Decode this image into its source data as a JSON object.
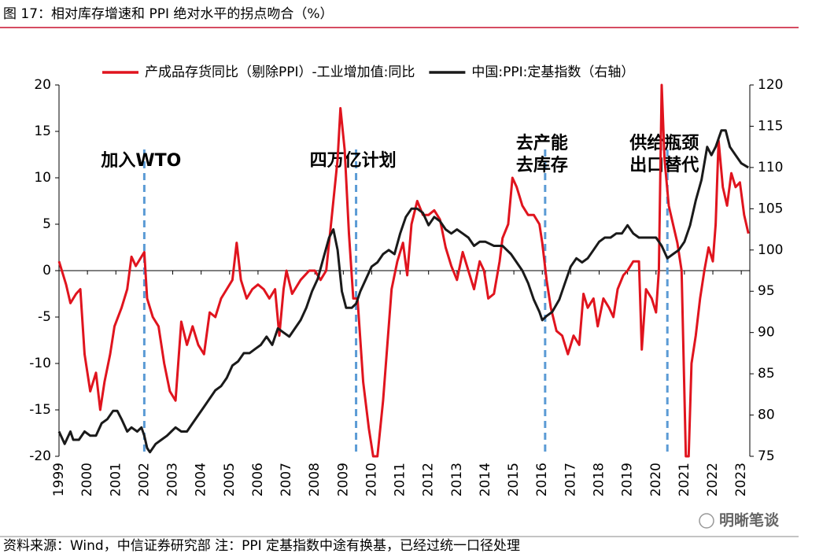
{
  "chart_data": {
    "type": "line",
    "title": "图 17：相对库存增速和 PPI 绝对水平的拐点吻合（%）",
    "source": "资料来源：Wind，中信证券研究部  注：PPI 定基指数中途有换基，已经过统一口径处理",
    "watermark": "明晰笔谈",
    "xlim": [
      1999,
      2023.3
    ],
    "xticks": [
      1999,
      2000,
      2001,
      2002,
      2003,
      2004,
      2005,
      2006,
      2007,
      2008,
      2009,
      2010,
      2011,
      2012,
      2013,
      2014,
      2015,
      2016,
      2017,
      2018,
      2019,
      2020,
      2021,
      2022,
      2023
    ],
    "ylim": [
      -20,
      20
    ],
    "yticks": [
      -20,
      -15,
      -10,
      -5,
      0,
      5,
      10,
      15,
      20
    ],
    "y2lim": [
      75,
      120
    ],
    "y2ticks": [
      75,
      80,
      85,
      90,
      95,
      100,
      105,
      110,
      115,
      120
    ],
    "legend": "top",
    "annotations": [
      {
        "x": 2002.0,
        "lines": [
          "加入WTO"
        ]
      },
      {
        "x": 2009.45,
        "lines": [
          "四万亿计划"
        ]
      },
      {
        "x": 2016.1,
        "lines": [
          "去产能",
          "去库存"
        ]
      },
      {
        "x": 2020.4,
        "lines": [
          "供给瓶颈",
          "出口替代"
        ]
      }
    ],
    "series": [
      {
        "name": "产成品存货同比（剔除PPI）-工业增加值:同比",
        "color": "#e0141e",
        "axis": "y",
        "x": [
          1999.0,
          1999.25,
          1999.4,
          1999.6,
          1999.75,
          1999.9,
          2000.1,
          2000.3,
          2000.45,
          2000.6,
          2000.8,
          2000.95,
          2001.2,
          2001.4,
          2001.55,
          2001.7,
          2001.9,
          2002.0,
          2002.1,
          2002.3,
          2002.5,
          2002.7,
          2002.9,
          2003.1,
          2003.3,
          2003.5,
          2003.7,
          2003.9,
          2004.1,
          2004.3,
          2004.5,
          2004.7,
          2004.9,
          2005.1,
          2005.25,
          2005.4,
          2005.6,
          2005.8,
          2006.0,
          2006.2,
          2006.4,
          2006.6,
          2006.75,
          2006.9,
          2007.0,
          2007.2,
          2007.5,
          2007.8,
          2008.0,
          2008.2,
          2008.4,
          2008.6,
          2008.8,
          2008.9,
          2009.05,
          2009.2,
          2009.35,
          2009.5,
          2009.7,
          2009.9,
          2010.05,
          2010.2,
          2010.4,
          2010.55,
          2010.7,
          2010.9,
          2011.1,
          2011.25,
          2011.4,
          2011.6,
          2011.8,
          2012.0,
          2012.2,
          2012.4,
          2012.6,
          2012.8,
          2013.0,
          2013.2,
          2013.4,
          2013.6,
          2013.8,
          2013.95,
          2014.1,
          2014.3,
          2014.5,
          2014.6,
          2014.8,
          2014.95,
          2015.1,
          2015.3,
          2015.5,
          2015.7,
          2015.9,
          2016.0,
          2016.15,
          2016.3,
          2016.5,
          2016.7,
          2016.9,
          2017.1,
          2017.3,
          2017.45,
          2017.6,
          2017.8,
          2017.95,
          2018.15,
          2018.35,
          2018.5,
          2018.65,
          2018.85,
          2019.0,
          2019.2,
          2019.4,
          2019.5,
          2019.65,
          2019.85,
          2020.0,
          2020.1,
          2020.2,
          2020.3,
          2020.45,
          2020.6,
          2020.75,
          2020.9,
          2021.05,
          2021.15,
          2021.25,
          2021.4,
          2021.55,
          2021.7,
          2021.85,
          2022.0,
          2022.1,
          2022.2,
          2022.35,
          2022.5,
          2022.65,
          2022.8,
          2022.95,
          2023.1,
          2023.25
        ],
        "values": [
          1,
          -1.5,
          -3.5,
          -2.5,
          -2,
          -9,
          -13,
          -11,
          -15,
          -12,
          -9,
          -6,
          -4,
          -2,
          1.5,
          0.5,
          1.5,
          2,
          -3,
          -5,
          -6,
          -10,
          -13,
          -14,
          -5.5,
          -8,
          -6,
          -8,
          -9,
          -4.5,
          -5,
          -3,
          -2,
          -1,
          3,
          -1,
          -3,
          -2,
          -1.5,
          -2,
          -3,
          -2,
          -7,
          -2,
          0,
          -2.5,
          -1,
          0,
          0,
          -1,
          0,
          6,
          12,
          17.5,
          13,
          4,
          -3,
          -3,
          -12,
          -17,
          -20,
          -20,
          -14,
          -8,
          -2,
          1,
          3,
          -0.5,
          5,
          7.5,
          6,
          6,
          6.5,
          5.5,
          2.5,
          0.5,
          -1,
          2,
          0,
          -2,
          1,
          0,
          -3,
          -2.5,
          1,
          3.5,
          5,
          10,
          9,
          7,
          6,
          6,
          5,
          3,
          -1,
          -4,
          -6.5,
          -7,
          -9,
          -7,
          -8,
          -2.5,
          -4,
          -3,
          -6,
          -3,
          -4,
          -5,
          -2,
          -0.5,
          0,
          1,
          1,
          -8.5,
          -2,
          -3,
          -4.5,
          0,
          20,
          12,
          7,
          5,
          3,
          0,
          -20,
          -20,
          -10,
          -7,
          -3,
          0,
          2.5,
          1,
          5,
          14,
          9,
          7,
          10.5,
          9,
          9.5,
          6,
          4
        ]
      },
      {
        "name": "中国:PPI:定基指数（右轴）",
        "color": "#1a1a1a",
        "axis": "y2",
        "x": [
          1999.0,
          1999.2,
          1999.4,
          1999.5,
          1999.7,
          1999.9,
          2000.1,
          2000.3,
          2000.5,
          2000.7,
          2000.9,
          2001.05,
          2001.2,
          2001.4,
          2001.55,
          2001.75,
          2001.9,
          2002.0,
          2002.1,
          2002.2,
          2002.4,
          2002.6,
          2002.8,
          2002.95,
          2003.1,
          2003.3,
          2003.5,
          2003.7,
          2003.9,
          2004.1,
          2004.3,
          2004.5,
          2004.7,
          2004.9,
          2005.1,
          2005.3,
          2005.5,
          2005.7,
          2005.9,
          2006.1,
          2006.3,
          2006.5,
          2006.7,
          2006.9,
          2007.1,
          2007.3,
          2007.5,
          2007.7,
          2007.9,
          2008.1,
          2008.3,
          2008.5,
          2008.65,
          2008.8,
          2008.95,
          2009.1,
          2009.3,
          2009.45,
          2009.6,
          2009.8,
          2010.0,
          2010.2,
          2010.4,
          2010.6,
          2010.8,
          2011.0,
          2011.2,
          2011.4,
          2011.6,
          2011.8,
          2012.0,
          2012.2,
          2012.4,
          2012.6,
          2012.8,
          2013.0,
          2013.2,
          2013.4,
          2013.6,
          2013.8,
          2014.0,
          2014.3,
          2014.6,
          2014.9,
          2015.1,
          2015.3,
          2015.5,
          2015.7,
          2015.9,
          2016.0,
          2016.15,
          2016.35,
          2016.6,
          2016.8,
          2017.0,
          2017.2,
          2017.4,
          2017.6,
          2017.8,
          2018.0,
          2018.2,
          2018.4,
          2018.6,
          2018.8,
          2019.0,
          2019.2,
          2019.4,
          2019.6,
          2019.8,
          2020.0,
          2020.2,
          2020.4,
          2020.6,
          2020.8,
          2021.0,
          2021.2,
          2021.4,
          2021.6,
          2021.8,
          2021.95,
          2022.1,
          2022.3,
          2022.45,
          2022.6,
          2022.8,
          2023.0,
          2023.25
        ],
        "values": [
          78,
          76.5,
          78,
          77,
          77,
          78,
          77.5,
          77.5,
          79,
          79.5,
          80.5,
          80.5,
          79.5,
          78,
          78.5,
          78,
          78.5,
          77.5,
          76,
          75.5,
          76.5,
          77,
          77.5,
          78,
          78.5,
          78,
          78,
          79,
          80,
          81,
          82,
          83,
          83.5,
          84.5,
          86,
          86.5,
          87.5,
          87.5,
          88,
          88.5,
          89.5,
          88.5,
          90.5,
          90,
          89.5,
          90.5,
          91.5,
          93,
          95,
          96.5,
          99,
          101.5,
          102.5,
          100,
          95,
          93,
          93,
          93.5,
          95,
          96.5,
          98,
          98.5,
          99.5,
          100,
          99.5,
          102,
          104,
          105,
          105,
          104.5,
          103,
          104,
          103.5,
          102.5,
          102,
          102.5,
          102,
          101.5,
          100.5,
          101,
          101,
          100.5,
          100.5,
          99.5,
          98.5,
          97.5,
          96,
          94,
          92.5,
          91.5,
          92,
          92.5,
          94,
          96,
          98,
          99,
          98.5,
          99,
          100,
          101,
          101.5,
          101.5,
          102,
          102,
          103,
          102,
          101.5,
          101.5,
          101.5,
          101.5,
          100.5,
          99,
          99.5,
          100,
          101,
          103,
          106,
          108.5,
          112.5,
          111.5,
          112.5,
          114.5,
          114.5,
          112.5,
          111.5,
          110.5,
          110
        ]
      }
    ]
  }
}
